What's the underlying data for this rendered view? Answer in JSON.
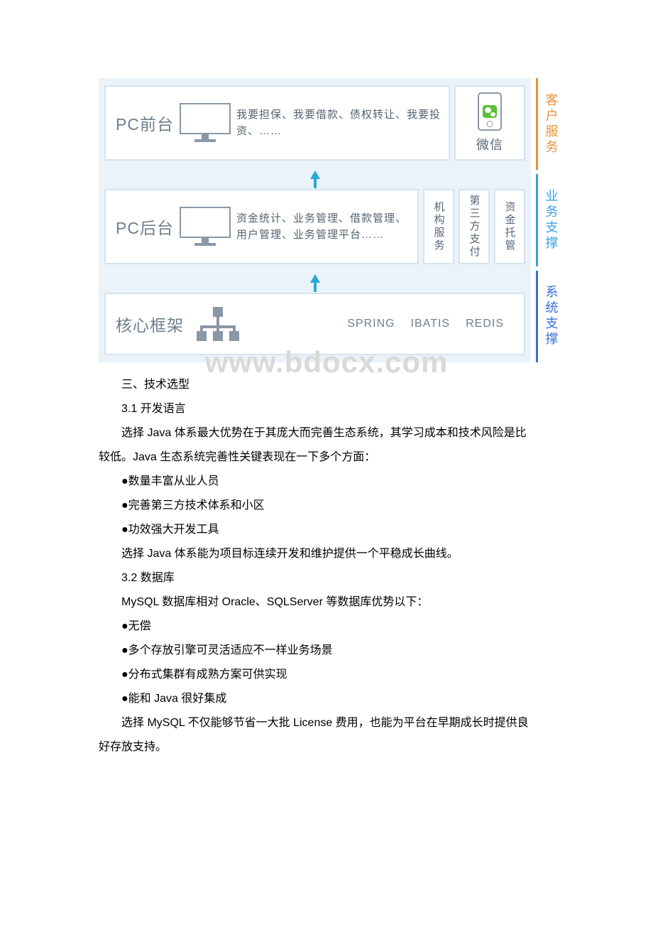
{
  "diagram": {
    "background_color": "#eaf2fa",
    "box_border_color": "#d6e3ef",
    "label_color": "#6f7e8e",
    "desc_color": "#56626f",
    "icon_stroke": "#8a97a6",
    "arrow_color": "#2aa9d2",
    "layer1": {
      "title": "PC前台",
      "desc": "我要担保、我要借款、债权转让、我要投资、……",
      "side_label": "微信",
      "side_icon": "wechat-icon"
    },
    "layer2": {
      "title": "PC后台",
      "desc": "资金统计、业务管理、借款管理、用户管理、业务管理平台……",
      "side1": "机构服务",
      "side2": "第三方支付",
      "side3": "资金托管"
    },
    "layer3": {
      "title": "核心框架",
      "tech1": "SPRING",
      "tech2": "IBATIS",
      "tech3": "REDIS"
    },
    "rail": {
      "seg1": {
        "text": "客户服务",
        "color": "#e8913a"
      },
      "seg2": {
        "text": "业务支撑",
        "color": "#3aa0e0"
      },
      "seg3": {
        "text": "系统支撑",
        "color": "#3a6fd8"
      }
    }
  },
  "watermark": "www.bdocx.com",
  "text": {
    "h3": "三、技术选型",
    "s31": "3.1 开发语言",
    "p1a": "选择 Java 体系最大优势在于其庞大而完善生态系统，其学习成本和技术风险是比",
    "p1b": "较低。Java 生态系统完善性关键表现在一下多个方面：",
    "b1": "●数量丰富从业人员",
    "b2": "●完善第三方技术体系和小区",
    "b3": "●功效强大开发工具",
    "p2": "选择 Java 体系能为项目标连续开发和维护提供一个平稳成长曲线。",
    "s32": "3.2 数据库",
    "p3": "MySQL 数据库相对 Oracle、SQLServer 等数据库优势以下：",
    "b4": "●无偿",
    "b5": "●多个存放引擎可灵活适应不一样业务场景",
    "b6": "●分布式集群有成熟方案可供实现",
    "b7": "●能和 Java 很好集成",
    "p4a": "选择 MySQL 不仅能够节省一大批 License 费用，也能为平台在早期成长时提供良",
    "p4b": "好存放支持。"
  }
}
